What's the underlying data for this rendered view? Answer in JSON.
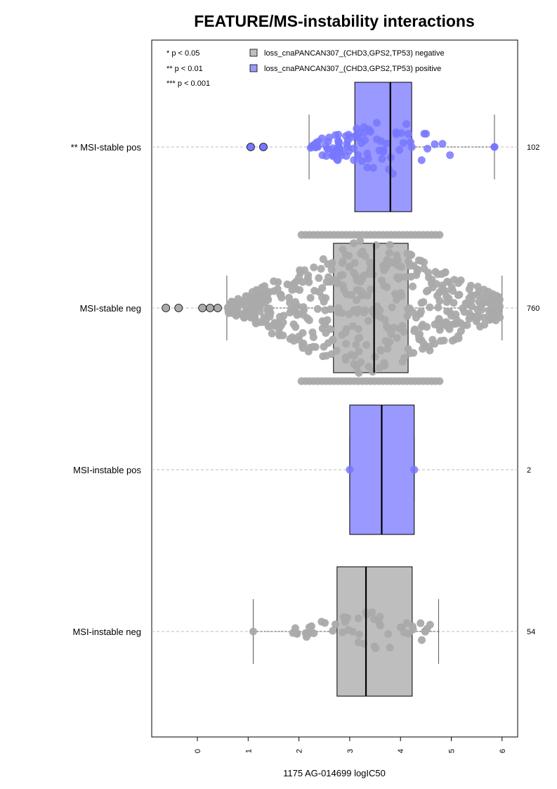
{
  "chart_data": {
    "type": "boxplot-beeswarm",
    "orientation": "horizontal",
    "title": "FEATURE/MS-instability interactions",
    "xlabel": "1175 AG-014699 logIC50",
    "xlim": [
      -0.9,
      6.3
    ],
    "x_ticks": [
      "0",
      "1",
      "2",
      "3",
      "4",
      "5",
      "6"
    ],
    "significance_legend": [
      "* p < 0.05",
      "** p < 0.01",
      "*** p < 0.001"
    ],
    "series_legend": [
      {
        "name": "loss_cnaPANCAN307_(CHD3,GPS2,TP53) negative",
        "color": "#bebebe"
      },
      {
        "name": "loss_cnaPANCAN307_(CHD3,GPS2,TP53) positive",
        "color": "#9999ff"
      }
    ],
    "colors": {
      "negative_box": "#bebebe",
      "negative_point": "#aaaaaa",
      "positive_box": "#9999ff",
      "positive_point": "#7777ff"
    },
    "groups": [
      {
        "label": "** MSI-stable pos",
        "n": "102",
        "status": "positive",
        "box": {
          "whisker_low": 2.2,
          "q1": 3.1,
          "median": 3.8,
          "q3": 4.22,
          "whisker_high": 5.85
        },
        "outliers": [
          1.05,
          1.3,
          5.85
        ]
      },
      {
        "label": "MSI-stable neg",
        "n": "760",
        "status": "negative",
        "box": {
          "whisker_low": 0.58,
          "q1": 2.68,
          "median": 3.48,
          "q3": 4.15,
          "whisker_high": 6.0
        },
        "outliers": [
          -0.62,
          -0.37,
          0.1,
          0.25,
          0.4
        ]
      },
      {
        "label": "MSI-instable pos",
        "n": "2",
        "status": "positive",
        "box": {
          "whisker_low": 3.0,
          "q1": 3.0,
          "median": 3.63,
          "q3": 4.27,
          "whisker_high": 4.27
        },
        "points": [
          3.0,
          4.27
        ]
      },
      {
        "label": "MSI-instable neg",
        "n": "54",
        "status": "negative",
        "box": {
          "whisker_low": 1.1,
          "q1": 2.75,
          "median": 3.32,
          "q3": 4.23,
          "whisker_high": 4.75
        },
        "outliers": []
      }
    ]
  }
}
